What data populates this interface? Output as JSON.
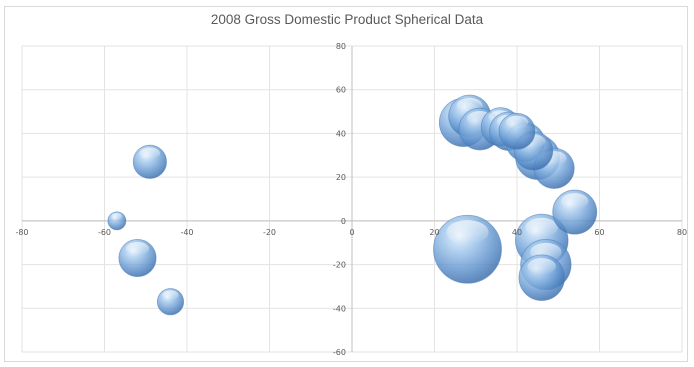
{
  "chart_data": {
    "type": "bubble",
    "title": "2008 Gross Domestic Product Spherical Data",
    "xlabel": "",
    "ylabel": "",
    "xlim": [
      -80,
      80
    ],
    "ylim": [
      -60,
      80
    ],
    "x_ticks": [
      -80,
      -60,
      -40,
      -20,
      0,
      20,
      40,
      60,
      80
    ],
    "y_ticks": [
      -60,
      -40,
      -20,
      0,
      20,
      40,
      60,
      80
    ],
    "grid": true,
    "legend": "none",
    "bubble_color": "#5b9bd5",
    "points": [
      {
        "x": 28,
        "y": -13,
        "size": 100
      },
      {
        "x": 46,
        "y": -9,
        "size": 60
      },
      {
        "x": 47,
        "y": -20,
        "size": 55
      },
      {
        "x": 46,
        "y": -26,
        "size": 45
      },
      {
        "x": 54,
        "y": 4,
        "size": 42
      },
      {
        "x": 27,
        "y": 45,
        "size": 50
      },
      {
        "x": 28.5,
        "y": 48,
        "size": 38
      },
      {
        "x": 31,
        "y": 42,
        "size": 38
      },
      {
        "x": 36,
        "y": 43,
        "size": 32
      },
      {
        "x": 38,
        "y": 41,
        "size": 32
      },
      {
        "x": 40,
        "y": 41,
        "size": 28
      },
      {
        "x": 42,
        "y": 36,
        "size": 32
      },
      {
        "x": 44,
        "y": 32,
        "size": 32
      },
      {
        "x": 45,
        "y": 29,
        "size": 42
      },
      {
        "x": 49,
        "y": 24,
        "size": 35
      },
      {
        "x": -49,
        "y": 27,
        "size": 24
      },
      {
        "x": -52,
        "y": -17,
        "size": 30
      },
      {
        "x": -44,
        "y": -37,
        "size": 15
      },
      {
        "x": -57,
        "y": 0,
        "size": 7
      }
    ]
  }
}
